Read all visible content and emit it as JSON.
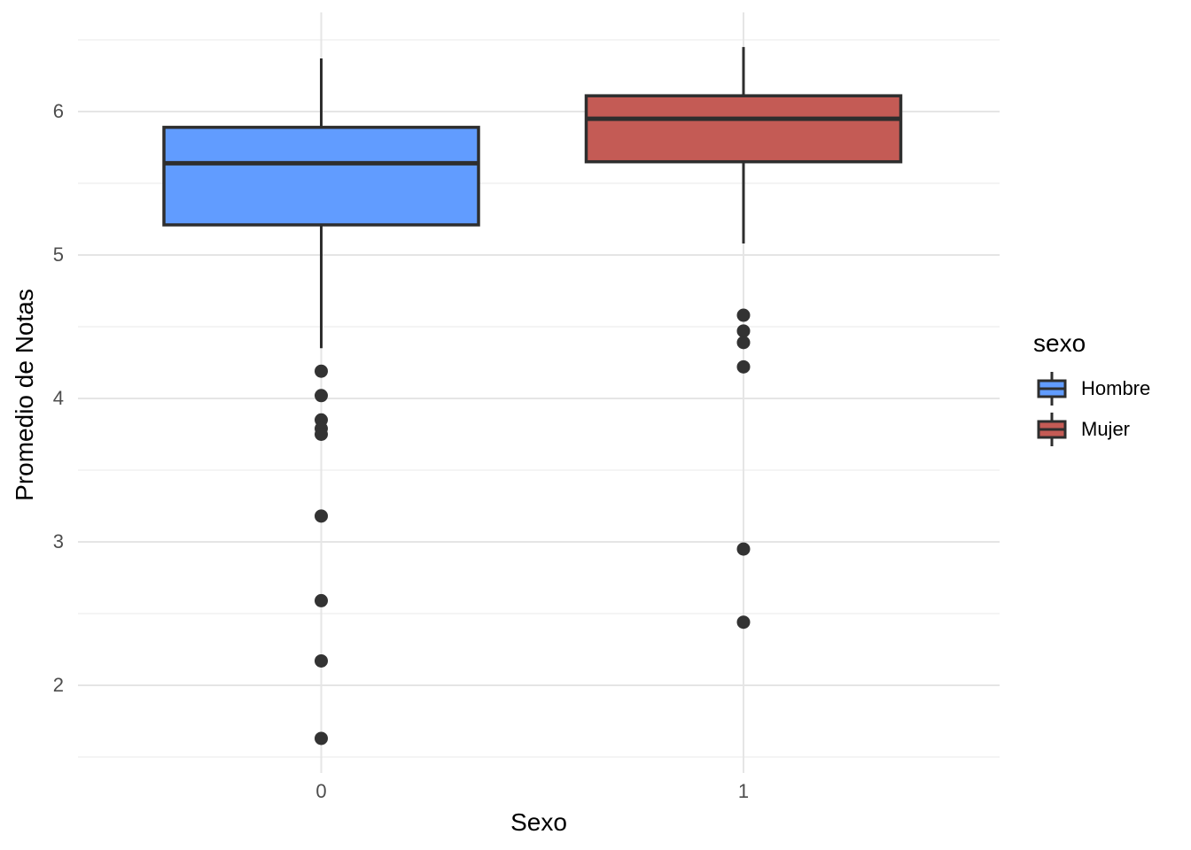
{
  "chart_data": {
    "type": "boxplot",
    "title": "",
    "xlabel": "Sexo",
    "ylabel": "Promedio de Notas",
    "categories": [
      "0",
      "1"
    ],
    "y_ticks": [
      6,
      5,
      4,
      3,
      2
    ],
    "ylim": [
      1.4,
      6.7
    ],
    "grid": "horizontal major+minor light gray, vertical major at categories, white background (theme_minimal)",
    "legend": {
      "title": "sexo",
      "position": "right",
      "entries": [
        {
          "label": "Hombre",
          "color": "#619CFF"
        },
        {
          "label": "Mujer",
          "color": "#C45B55"
        }
      ]
    },
    "series": [
      {
        "name": "Hombre",
        "category": "0",
        "fill_color": "#619CFF",
        "whisker_high": 6.37,
        "q3": 5.89,
        "median": 5.64,
        "q1": 5.21,
        "whisker_low": 4.35,
        "outliers": [
          4.19,
          4.02,
          3.85,
          3.79,
          3.75,
          3.18,
          2.59,
          2.17,
          1.63
        ]
      },
      {
        "name": "Mujer",
        "category": "1",
        "fill_color": "#C45B55",
        "whisker_high": 6.45,
        "q3": 6.11,
        "median": 5.95,
        "q1": 5.65,
        "whisker_low": 5.08,
        "outliers": [
          4.58,
          4.47,
          4.39,
          4.22,
          2.95,
          2.44
        ]
      }
    ],
    "style": {
      "stroke_color": "#2E2E2E",
      "outlier_color": "#333333",
      "major_grid_color": "#E5E5E5",
      "minor_grid_color": "#F0F0F0",
      "tick_label_color": "#4D4D4D"
    }
  }
}
